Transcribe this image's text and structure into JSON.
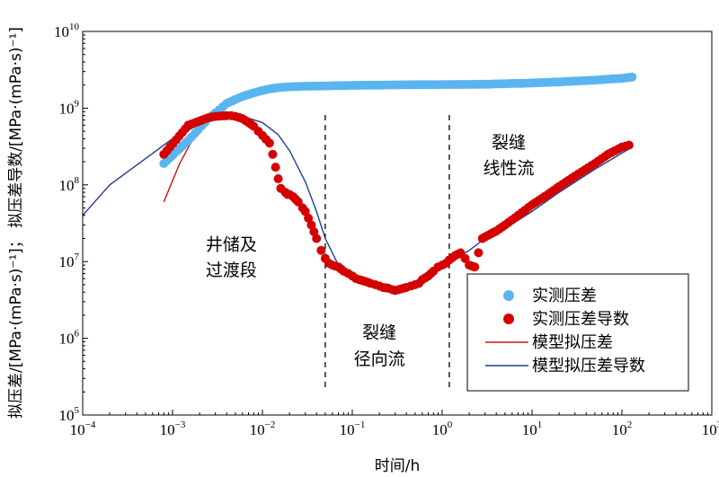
{
  "chart_data": {
    "type": "scatter",
    "xlabel": "时间/h",
    "ylabel": "拟压差/[MPa·(mPa·s)⁻¹]； 拟压差导数/[MPa·(mPa·s)⁻¹]",
    "xscale": "log",
    "yscale": "log",
    "xlim": [
      0.0001,
      1000
    ],
    "ylim": [
      100000,
      10000000000
    ],
    "x_ticks": [
      {
        "base": "10",
        "exp": "−4",
        "value": 0.0001
      },
      {
        "base": "10",
        "exp": "−3",
        "value": 0.001
      },
      {
        "base": "10",
        "exp": "−2",
        "value": 0.01
      },
      {
        "base": "10",
        "exp": "−1",
        "value": 0.1
      },
      {
        "base": "10",
        "exp": "0",
        "value": 1
      },
      {
        "base": "10",
        "exp": "1",
        "value": 10
      },
      {
        "base": "10",
        "exp": "2",
        "value": 100
      },
      {
        "base": "10",
        "exp": "3",
        "value": 1000
      }
    ],
    "y_ticks": [
      {
        "base": "10",
        "exp": "5",
        "value": 100000
      },
      {
        "base": "10",
        "exp": "6",
        "value": 1000000
      },
      {
        "base": "10",
        "exp": "7",
        "value": 10000000
      },
      {
        "base": "10",
        "exp": "8",
        "value": 100000000
      },
      {
        "base": "10",
        "exp": "9",
        "value": 1000000000
      },
      {
        "base": "10",
        "exp": "10",
        "value": 10000000000
      }
    ],
    "grid": false,
    "legend_position": "bottom-right",
    "series": [
      {
        "name": "实测压差",
        "kind": "points",
        "color": "#5ab4f0",
        "x": [
          0.0008,
          0.0015,
          0.0025,
          0.0033,
          0.004,
          0.005,
          0.006,
          0.008,
          0.01,
          0.012,
          0.015,
          0.02,
          0.03,
          0.05,
          0.08,
          0.1,
          0.2,
          0.3,
          0.5,
          1,
          2,
          3,
          5,
          10,
          20,
          50,
          100,
          130
        ],
        "y": [
          190000000,
          380000000,
          730000000,
          950000000,
          1150000000,
          1300000000,
          1420000000,
          1580000000,
          1700000000,
          1780000000,
          1850000000,
          1900000000,
          1930000000,
          1950000000,
          1970000000,
          1980000000,
          2000000000,
          2010000000,
          2020000000,
          2030000000,
          2040000000,
          2050000000,
          2080000000,
          2130000000,
          2200000000,
          2320000000,
          2450000000,
          2550000000
        ]
      },
      {
        "name": "实测压差导数",
        "kind": "points",
        "color": "#d40000",
        "x": [
          0.0008,
          0.0015,
          0.0025,
          0.003,
          0.0035,
          0.004,
          0.0045,
          0.005,
          0.006,
          0.007,
          0.008,
          0.009,
          0.01,
          0.012,
          0.013,
          0.014,
          0.015,
          0.016,
          0.018,
          0.019,
          0.02,
          0.022,
          0.025,
          0.028,
          0.03,
          0.035,
          0.04,
          0.045,
          0.05,
          0.055,
          0.06,
          0.07,
          0.08,
          0.09,
          0.1,
          0.11,
          0.12,
          0.14,
          0.16,
          0.18,
          0.2,
          0.22,
          0.25,
          0.28,
          0.3,
          0.35,
          0.4,
          0.45,
          0.5,
          0.55,
          0.6,
          0.7,
          0.8,
          0.9,
          1.0,
          1.1,
          1.2,
          1.4,
          1.6,
          1.8,
          2.0,
          2.3,
          2.8,
          3.0,
          4.0,
          5.0,
          7.0,
          10,
          15,
          20,
          30,
          50,
          70,
          100,
          120
        ],
        "y": [
          250000000,
          600000000,
          750000000,
          780000000,
          790000000,
          800000000,
          800000000,
          780000000,
          730000000,
          650000000,
          580000000,
          500000000,
          440000000,
          350000000,
          250000000,
          170000000,
          120000000,
          90000000,
          80000000,
          75000000,
          75000000,
          70000000,
          60000000,
          50000000,
          45000000,
          30000000,
          20000000,
          14000000,
          11000000,
          9500000,
          9000000,
          8500000,
          7500000,
          7000000,
          6500000,
          6000000,
          5800000,
          5500000,
          5200000,
          5000000,
          4800000,
          4600000,
          4500000,
          4300000,
          4200000,
          4400000,
          4600000,
          4800000,
          5000000,
          5200000,
          5800000,
          6500000,
          7500000,
          8500000,
          9000000,
          9500000,
          10500000,
          12000000,
          13000000,
          11000000,
          9000000,
          8500000,
          20000000,
          21000000,
          25000000,
          30000000,
          40000000,
          55000000,
          75000000,
          95000000,
          130000000,
          190000000,
          250000000,
          310000000,
          330000000
        ]
      },
      {
        "name": "模型拟压差",
        "kind": "line",
        "color": "#cc1111",
        "x": [
          0.0008,
          0.0012,
          0.0018,
          0.0025,
          0.003
        ],
        "y": [
          60000000,
          190000000,
          460000000,
          760000000,
          950000000
        ]
      },
      {
        "name": "模型拟压差导数",
        "kind": "line",
        "color": "#1f3f8f",
        "x": [
          0.0001,
          0.0002,
          0.0005,
          0.001,
          0.002,
          0.003,
          0.004,
          0.005,
          0.007,
          0.01,
          0.015,
          0.02,
          0.03,
          0.04,
          0.05,
          0.07,
          0.1,
          0.15,
          0.2,
          0.3,
          0.4,
          0.5,
          0.7,
          1,
          2,
          3,
          5,
          10,
          20,
          50,
          100,
          130
        ],
        "y": [
          40000000,
          100000000,
          220000000,
          400000000,
          620000000,
          720000000,
          760000000,
          770000000,
          740000000,
          650000000,
          450000000,
          280000000,
          110000000,
          45000000,
          20000000,
          9000000,
          6000000,
          5000000,
          4600000,
          4500000,
          4700000,
          5200000,
          6500000,
          8500000,
          14000000,
          20000000,
          27000000,
          45000000,
          80000000,
          160000000,
          260000000,
          310000000
        ]
      }
    ],
    "vlines": [
      0.05,
      1.2
    ],
    "annotations": [
      {
        "lines": [
          "井储及",
          "过渡段"
        ],
        "x": 0.0045,
        "y": [
          14000000,
          6500000
        ]
      },
      {
        "lines": [
          "裂缝",
          "径向流"
        ],
        "x": 0.2,
        "y": [
          1000000,
          450000
        ]
      },
      {
        "lines": [
          "裂缝",
          "线性流"
        ],
        "x": 5.5,
        "y": [
          300000000,
          140000000
        ]
      }
    ]
  }
}
